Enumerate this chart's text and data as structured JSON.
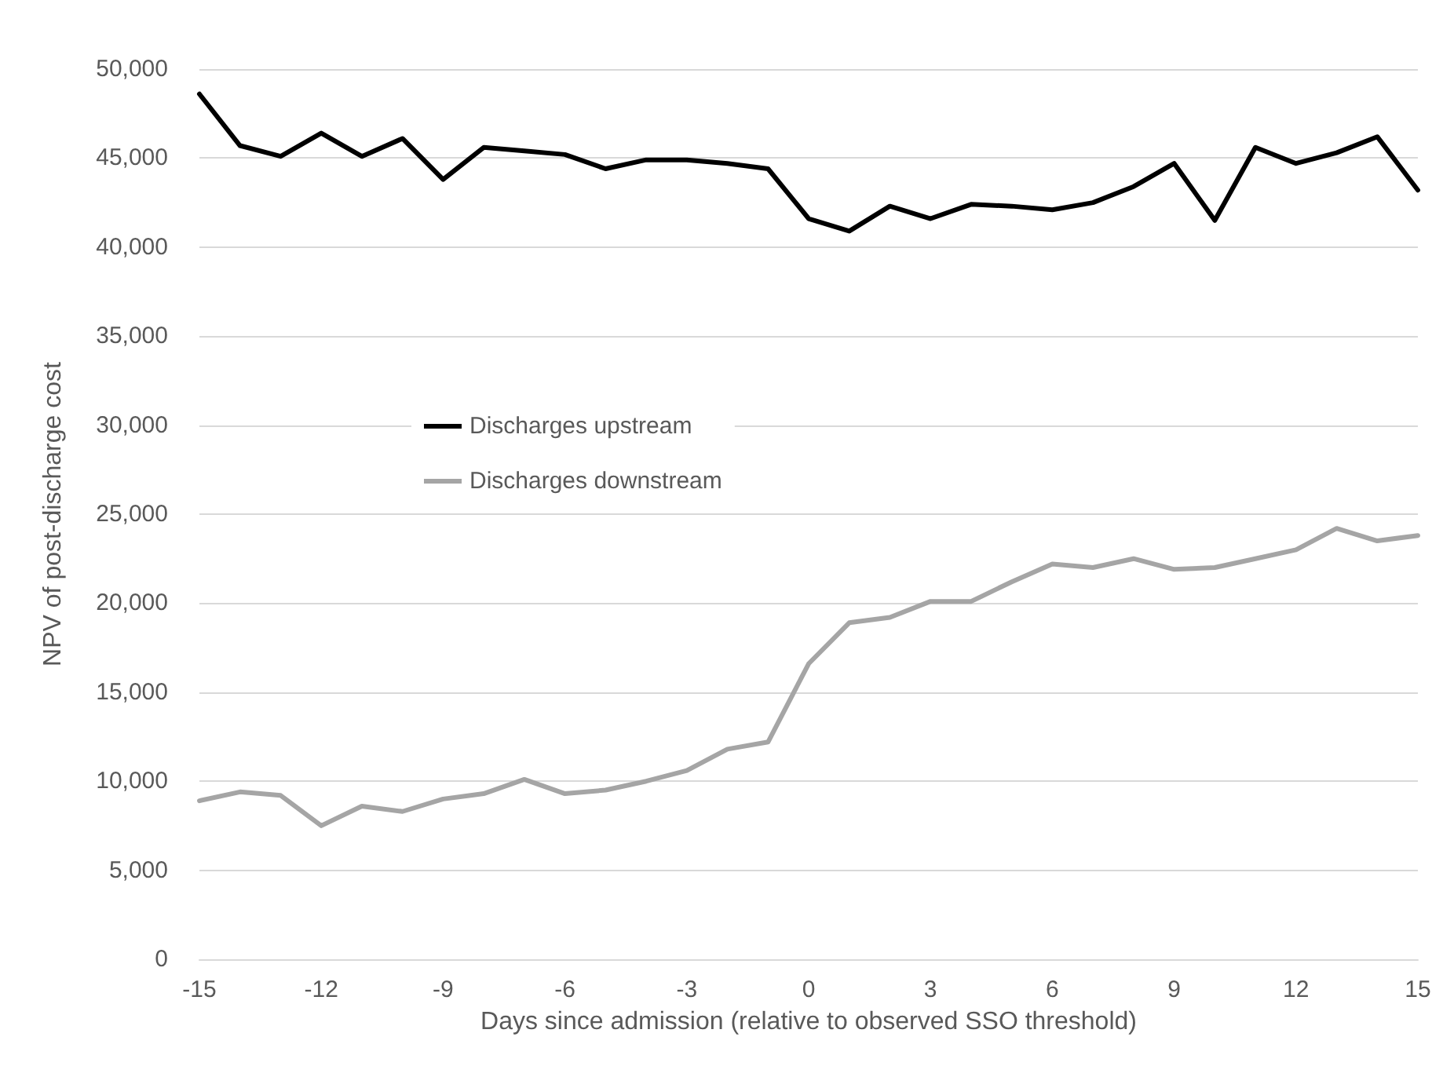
{
  "chart_data": {
    "type": "line",
    "xlabel": "Days since admission (relative to observed SSO threshold)",
    "ylabel": "NPV of post-discharge cost",
    "x": [
      -15,
      -14,
      -13,
      -12,
      -11,
      -10,
      -9,
      -8,
      -7,
      -6,
      -5,
      -4,
      -3,
      -2,
      -1,
      0,
      1,
      2,
      3,
      4,
      5,
      6,
      7,
      8,
      9,
      10,
      11,
      12,
      13,
      14,
      15
    ],
    "series": [
      {
        "name": "Discharges upstream",
        "color": "#000000",
        "values": [
          48600,
          45700,
          45100,
          46400,
          45100,
          46100,
          43800,
          45600,
          45400,
          45200,
          44400,
          44900,
          44900,
          44700,
          44400,
          41600,
          40900,
          42300,
          41600,
          42400,
          42300,
          42100,
          42500,
          43400,
          44700,
          41500,
          45600,
          44700,
          45300,
          46200,
          43200
        ]
      },
      {
        "name": "Discharges downstream",
        "color": "#a5a5a5",
        "values": [
          8900,
          9400,
          9200,
          7500,
          8600,
          8300,
          9000,
          9300,
          10100,
          9300,
          9500,
          10000,
          10600,
          11800,
          12200,
          16600,
          18900,
          19200,
          20100,
          20100,
          21200,
          22200,
          22000,
          22500,
          21900,
          22000,
          22500,
          23000,
          24200,
          23500,
          23800
        ]
      }
    ],
    "xlim": [
      -15,
      15
    ],
    "xticks": [
      -15,
      -12,
      -9,
      -6,
      -3,
      0,
      3,
      6,
      9,
      12,
      15
    ],
    "ylim": [
      0,
      50000
    ],
    "yticks": [
      0,
      {
        "value": 5000,
        "label": "5,000"
      },
      {
        "value": 10000,
        "label": "10,000"
      },
      {
        "value": 15000,
        "label": "15,000"
      },
      {
        "value": 20000,
        "label": "20,000"
      },
      {
        "value": 25000,
        "label": "25,000"
      },
      {
        "value": 30000,
        "label": "30,000"
      },
      {
        "value": 35000,
        "label": "35,000"
      },
      {
        "value": 40000,
        "label": "40,000"
      },
      {
        "value": 45000,
        "label": "45,000"
      },
      {
        "value": 50000,
        "label": "50,000"
      }
    ],
    "grid": "y",
    "legend": "left",
    "marker": "none",
    "line_style": "solid"
  }
}
